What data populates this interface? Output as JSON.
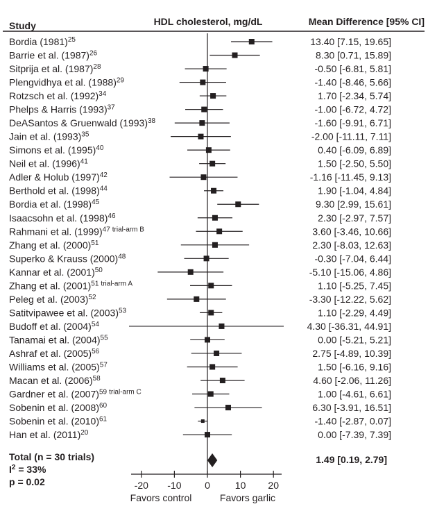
{
  "chart_data": {
    "type": "forest",
    "title": "HDL cholesterol, mg/dL",
    "column_headers": {
      "study": "Study",
      "plot": "HDL cholesterol, mg/dL",
      "effect": "Mean Difference [95% CI]"
    },
    "xlim": [
      -20,
      20
    ],
    "x_ticks": [
      -20,
      -10,
      0,
      10,
      20
    ],
    "x_tick_labels": [
      "-20",
      "-10",
      "0",
      "10",
      "20"
    ],
    "xlabel_left": "Favors control",
    "xlabel_right": "Favors garlic",
    "studies": [
      {
        "name": "Bordia (1981)",
        "ref": "25",
        "note": "",
        "md": 13.4,
        "lo": 7.15,
        "hi": 19.65,
        "label": "13.40 [7.15, 19.65]"
      },
      {
        "name": "Barrie et al. (1987)",
        "ref": "26",
        "note": "",
        "md": 8.3,
        "lo": 0.71,
        "hi": 15.89,
        "label": "8.30 [0.71, 15.89]"
      },
      {
        "name": "Sitprija et al. (1987)",
        "ref": "28",
        "note": "",
        "md": -0.5,
        "lo": -6.81,
        "hi": 5.81,
        "label": "-0.50 [-6.81, 5.81]"
      },
      {
        "name": "Plengvidhya et al. (1988)",
        "ref": "29",
        "note": "",
        "md": -1.4,
        "lo": -8.46,
        "hi": 5.66,
        "label": "-1.40 [-8.46, 5.66]"
      },
      {
        "name": "Rotzsch et al. (1992)",
        "ref": "34",
        "note": "",
        "md": 1.7,
        "lo": -2.34,
        "hi": 5.74,
        "label": "1.70 [-2.34, 5.74]"
      },
      {
        "name": "Phelps & Harris (1993)",
        "ref": "37",
        "note": "",
        "md": -1.0,
        "lo": -6.72,
        "hi": 4.72,
        "label": "-1.00 [-6.72, 4.72]"
      },
      {
        "name": "DeASantos & Gruenwald (1993)",
        "ref": "38",
        "note": "",
        "md": -1.6,
        "lo": -9.91,
        "hi": 6.71,
        "label": "-1.60 [-9.91, 6.71]"
      },
      {
        "name": "Jain et al. (1993)",
        "ref": "35",
        "note": "",
        "md": -2.0,
        "lo": -11.11,
        "hi": 7.11,
        "label": "-2.00 [-11.11, 7.11]"
      },
      {
        "name": "Simons et al. (1995)",
        "ref": "40",
        "note": "",
        "md": 0.4,
        "lo": -6.09,
        "hi": 6.89,
        "label": "0.40 [-6.09, 6.89]"
      },
      {
        "name": "Neil et al. (1996)",
        "ref": "41",
        "note": "",
        "md": 1.5,
        "lo": -2.5,
        "hi": 5.5,
        "label": "1.50 [-2.50, 5.50]"
      },
      {
        "name": "Adler & Holub (1997)",
        "ref": "42",
        "note": "",
        "md": -1.16,
        "lo": -11.45,
        "hi": 9.13,
        "label": "-1.16 [-11.45, 9.13]"
      },
      {
        "name": "Berthold et al. (1998)",
        "ref": "44",
        "note": "",
        "md": 1.9,
        "lo": -1.04,
        "hi": 4.84,
        "label": "1.90 [-1.04, 4.84]"
      },
      {
        "name": "Bordia et al. (1998)",
        "ref": "45",
        "note": "",
        "md": 9.3,
        "lo": 2.99,
        "hi": 15.61,
        "label": "9.30 [2.99, 15.61]"
      },
      {
        "name": "Isaacsohn et al. (1998)",
        "ref": "46",
        "note": "",
        "md": 2.3,
        "lo": -2.97,
        "hi": 7.57,
        "label": "2.30 [-2.97, 7.57]"
      },
      {
        "name": "Rahmani et al. (1999)",
        "ref": "47",
        "note": "trial-arm B",
        "md": 3.6,
        "lo": -3.46,
        "hi": 10.66,
        "label": "3.60 [-3.46, 10.66]"
      },
      {
        "name": "Zhang et al. (2000)",
        "ref": "51",
        "note": "",
        "md": 2.3,
        "lo": -8.03,
        "hi": 12.63,
        "label": "2.30 [-8.03, 12.63]"
      },
      {
        "name": "Superko & Krauss (2000)",
        "ref": "48",
        "note": "",
        "md": -0.3,
        "lo": -7.04,
        "hi": 6.44,
        "label": "-0.30 [-7.04, 6.44]"
      },
      {
        "name": "Kannar et al. (2001)",
        "ref": "50",
        "note": "",
        "md": -5.1,
        "lo": -15.06,
        "hi": 4.86,
        "label": "-5.10 [-15.06, 4.86]"
      },
      {
        "name": "Zhang et al. (2001)",
        "ref": "51",
        "note": "trial-arm A",
        "md": 1.1,
        "lo": -5.25,
        "hi": 7.45,
        "label": "1.10 [-5.25, 7.45]"
      },
      {
        "name": "Peleg et al. (2003)",
        "ref": "52",
        "note": "",
        "md": -3.3,
        "lo": -12.22,
        "hi": 5.62,
        "label": "-3.30 [-12.22, 5.62]"
      },
      {
        "name": "Satitvipawee et al. (2003)",
        "ref": "53",
        "note": "",
        "md": 1.1,
        "lo": -2.29,
        "hi": 4.49,
        "label": "1.10 [-2.29, 4.49]"
      },
      {
        "name": "Budoff et al. (2004)",
        "ref": "54",
        "note": "",
        "md": 4.3,
        "lo": -36.31,
        "hi": 44.91,
        "label": "4.30 [-36.31, 44.91]"
      },
      {
        "name": "Tanamai et al. (2004)",
        "ref": "55",
        "note": "",
        "md": 0.0,
        "lo": -5.21,
        "hi": 5.21,
        "label": "0.00 [-5.21, 5.21]"
      },
      {
        "name": "Ashraf et al. (2005)",
        "ref": "56",
        "note": "",
        "md": 2.75,
        "lo": -4.89,
        "hi": 10.39,
        "label": "2.75 [-4.89, 10.39]"
      },
      {
        "name": "Williams et al. (2005)",
        "ref": "57",
        "note": "",
        "md": 1.5,
        "lo": -6.16,
        "hi": 9.16,
        "label": "1.50 [-6.16, 9.16]"
      },
      {
        "name": "Macan et al. (2006)",
        "ref": "58",
        "note": "",
        "md": 4.6,
        "lo": -2.06,
        "hi": 11.26,
        "label": "4.60 [-2.06, 11.26]"
      },
      {
        "name": "Gardner et al. (2007)",
        "ref": "59",
        "note": "trial-arm C",
        "md": 1.0,
        "lo": -4.61,
        "hi": 6.61,
        "label": "1.00 [-4.61, 6.61]"
      },
      {
        "name": "Sobenin et al. (2008)",
        "ref": "60",
        "note": "",
        "md": 6.3,
        "lo": -3.91,
        "hi": 16.51,
        "label": "6.30 [-3.91, 16.51]"
      },
      {
        "name": "Sobenin et al. (2010)",
        "ref": "61",
        "note": "",
        "md": -1.4,
        "lo": -2.87,
        "hi": 0.07,
        "label": "-1.40 [-2.87, 0.07]"
      },
      {
        "name": "Han et al. (2011)",
        "ref": "20",
        "note": "",
        "md": 0.0,
        "lo": -7.39,
        "hi": 7.39,
        "label": "0.00 [-7.39, 7.39]"
      }
    ],
    "total": {
      "label": "Total (n = 30 trials)",
      "i2_prefix": "I",
      "i2_sup": "2",
      "i2_value": " = 33%",
      "p_label": "p = 0.02",
      "md": 1.49,
      "lo": 0.19,
      "hi": 2.79,
      "effect_label": "1.49 [0.19, 2.79]"
    },
    "colors": {
      "ink": "#231f20",
      "line": "#231f20",
      "ci_gray": "#6d6e70"
    }
  }
}
